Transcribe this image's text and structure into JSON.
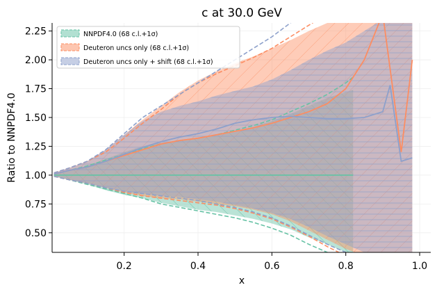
{
  "chart_data": {
    "type": "line",
    "title": "c at 30.0 GeV",
    "xlabel": "x",
    "ylabel": "Ratio to NNPDF4.0",
    "xlim": [
      0.005,
      1.03
    ],
    "ylim": [
      0.33,
      2.32
    ],
    "xticks": [
      0.2,
      0.4,
      0.6,
      0.8,
      1.0
    ],
    "xtick_labels": [
      "0.2",
      "0.4",
      "0.6",
      "0.8",
      "1.0"
    ],
    "yticks": [
      0.5,
      0.75,
      1.0,
      1.25,
      1.5,
      1.75,
      2.0,
      2.25
    ],
    "ytick_labels": [
      "0.50",
      "0.75",
      "1.00",
      "1.25",
      "1.50",
      "1.75",
      "2.00",
      "2.25"
    ],
    "grid": true,
    "legend_position": "top-left",
    "colors": {
      "nnpdf": "#66c2a5",
      "deuteron": "#fc8d62",
      "shift": "#8da0cb"
    },
    "series": [
      {
        "name": "NNPDF4.0 (68 c.l.+1σ)",
        "color_key": "nnpdf",
        "x": [
          0.01,
          0.05,
          0.1,
          0.15,
          0.2,
          0.25,
          0.3,
          0.35,
          0.4,
          0.45,
          0.5,
          0.55,
          0.6,
          0.65,
          0.7,
          0.75,
          0.8,
          0.82
        ],
        "central": [
          1.0,
          1.0,
          1.0,
          1.0,
          1.0,
          1.0,
          1.0,
          1.0,
          1.0,
          1.0,
          1.0,
          1.0,
          1.0,
          1.0,
          1.0,
          1.0,
          1.0,
          1.0
        ],
        "upper_cl": [
          1.01,
          1.04,
          1.08,
          1.14,
          1.2,
          1.25,
          1.28,
          1.3,
          1.32,
          1.35,
          1.38,
          1.42,
          1.47,
          1.53,
          1.6,
          1.67,
          1.72,
          1.74
        ],
        "lower_cl": [
          0.99,
          0.96,
          0.92,
          0.87,
          0.83,
          0.8,
          0.76,
          0.73,
          0.7,
          0.68,
          0.65,
          0.62,
          0.58,
          0.53,
          0.46,
          0.4,
          0.33,
          0.3
        ],
        "upper_1sigma": [
          1.01,
          1.04,
          1.08,
          1.13,
          1.18,
          1.23,
          1.27,
          1.3,
          1.32,
          1.35,
          1.39,
          1.43,
          1.48,
          1.55,
          1.62,
          1.7,
          1.8,
          1.85
        ],
        "lower_1sigma": [
          0.99,
          0.96,
          0.92,
          0.88,
          0.84,
          0.8,
          0.75,
          0.72,
          0.69,
          0.66,
          0.63,
          0.59,
          0.54,
          0.48,
          0.4,
          0.33,
          0.27,
          0.25
        ]
      },
      {
        "name": "Deuteron uncs only (68 c.l.+1σ)",
        "color_key": "deuteron",
        "x": [
          0.01,
          0.05,
          0.1,
          0.15,
          0.2,
          0.25,
          0.3,
          0.35,
          0.4,
          0.45,
          0.5,
          0.55,
          0.6,
          0.65,
          0.7,
          0.75,
          0.8,
          0.85,
          0.9,
          0.95,
          0.98
        ],
        "central": [
          1.01,
          1.04,
          1.07,
          1.12,
          1.17,
          1.22,
          1.27,
          1.3,
          1.32,
          1.35,
          1.38,
          1.41,
          1.45,
          1.5,
          1.55,
          1.62,
          1.75,
          2.0,
          2.4,
          1.2,
          2.0
        ],
        "upper_cl": [
          1.02,
          1.06,
          1.12,
          1.22,
          1.35,
          1.48,
          1.6,
          1.72,
          1.82,
          1.9,
          1.97,
          2.03,
          2.1,
          2.17,
          2.25,
          2.32,
          2.4,
          2.45,
          2.5,
          2.5,
          2.5
        ],
        "lower_cl": [
          0.99,
          0.96,
          0.93,
          0.89,
          0.85,
          0.82,
          0.8,
          0.79,
          0.77,
          0.75,
          0.73,
          0.7,
          0.66,
          0.6,
          0.52,
          0.44,
          0.36,
          0.3,
          0.3,
          0.3,
          0.3
        ],
        "upper_1sigma": [
          1.02,
          1.06,
          1.12,
          1.2,
          1.32,
          1.45,
          1.57,
          1.7,
          1.8,
          1.88,
          1.95,
          2.02,
          2.1,
          2.2,
          2.3,
          2.4,
          2.5,
          2.5,
          2.5,
          2.5,
          2.5
        ],
        "lower_1sigma": [
          0.99,
          0.96,
          0.93,
          0.89,
          0.85,
          0.82,
          0.8,
          0.78,
          0.76,
          0.74,
          0.71,
          0.67,
          0.62,
          0.55,
          0.47,
          0.38,
          0.3,
          0.25,
          0.25,
          0.25,
          0.25
        ]
      },
      {
        "name": "Deuteron uncs only + shift (68 c.l.+1σ)",
        "color_key": "shift",
        "x": [
          0.01,
          0.05,
          0.1,
          0.15,
          0.2,
          0.25,
          0.3,
          0.35,
          0.4,
          0.45,
          0.5,
          0.55,
          0.6,
          0.65,
          0.7,
          0.75,
          0.8,
          0.85,
          0.9,
          0.92,
          0.95,
          0.98
        ],
        "central": [
          1.01,
          1.04,
          1.07,
          1.12,
          1.18,
          1.24,
          1.29,
          1.33,
          1.36,
          1.4,
          1.45,
          1.48,
          1.5,
          1.51,
          1.5,
          1.49,
          1.49,
          1.5,
          1.55,
          1.78,
          1.12,
          1.15
        ],
        "upper_cl": [
          1.02,
          1.06,
          1.12,
          1.22,
          1.35,
          1.47,
          1.55,
          1.6,
          1.64,
          1.69,
          1.73,
          1.77,
          1.83,
          1.91,
          2.0,
          2.08,
          2.15,
          2.25,
          2.35,
          2.4,
          2.4,
          2.4
        ],
        "lower_cl": [
          0.99,
          0.96,
          0.93,
          0.89,
          0.86,
          0.84,
          0.82,
          0.81,
          0.79,
          0.77,
          0.74,
          0.71,
          0.67,
          0.62,
          0.55,
          0.47,
          0.4,
          0.33,
          0.3,
          0.3,
          0.3,
          0.3
        ],
        "upper_1sigma": [
          1.02,
          1.06,
          1.12,
          1.22,
          1.36,
          1.5,
          1.6,
          1.7,
          1.8,
          1.9,
          2.0,
          2.1,
          2.2,
          2.32,
          2.45,
          2.55,
          2.6,
          2.6,
          2.6,
          2.6,
          2.6,
          2.6
        ],
        "lower_1sigma": [
          0.99,
          0.96,
          0.93,
          0.89,
          0.86,
          0.84,
          0.82,
          0.8,
          0.78,
          0.75,
          0.72,
          0.68,
          0.63,
          0.56,
          0.48,
          0.4,
          0.33,
          0.28,
          0.25,
          0.25,
          0.25,
          0.25
        ]
      }
    ]
  }
}
